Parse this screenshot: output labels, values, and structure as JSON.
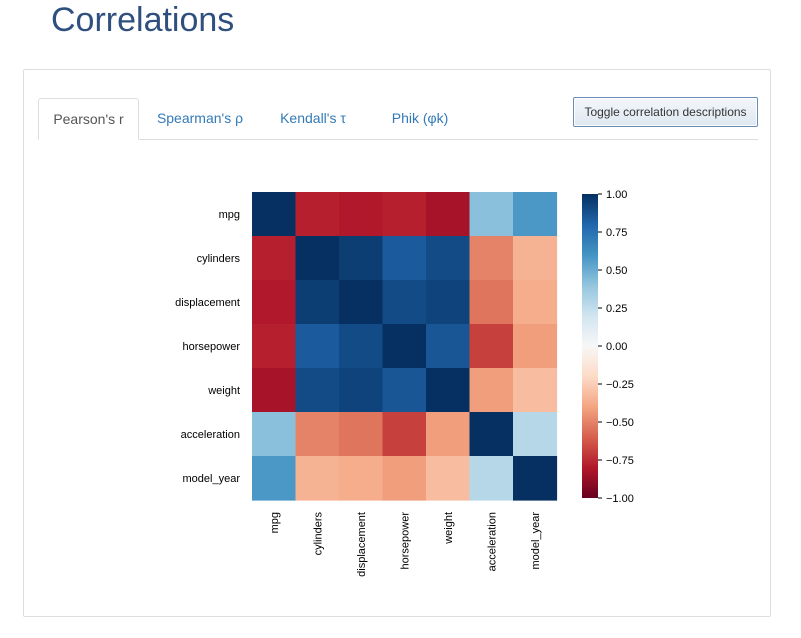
{
  "page": {
    "title": "Correlations"
  },
  "tabs": [
    {
      "label": "Pearson's r",
      "active": true
    },
    {
      "label": "Spearman's ρ",
      "active": false
    },
    {
      "label": "Kendall's τ",
      "active": false
    },
    {
      "label": "Phik (φk)",
      "active": false
    }
  ],
  "toggle_button": {
    "label": "Toggle correlation descriptions"
  },
  "chart_data": {
    "type": "heatmap",
    "title": "",
    "variables": [
      "mpg",
      "cylinders",
      "displacement",
      "horsepower",
      "weight",
      "acceleration",
      "model_year"
    ],
    "matrix": [
      [
        1.0,
        -0.78,
        -0.8,
        -0.78,
        -0.83,
        0.42,
        0.58
      ],
      [
        -0.78,
        1.0,
        0.95,
        0.84,
        0.9,
        -0.5,
        -0.35
      ],
      [
        -0.8,
        0.95,
        1.0,
        0.9,
        0.93,
        -0.54,
        -0.37
      ],
      [
        -0.78,
        0.84,
        0.9,
        1.0,
        0.86,
        -0.69,
        -0.42
      ],
      [
        -0.83,
        0.9,
        0.93,
        0.86,
        1.0,
        -0.42,
        -0.31
      ],
      [
        0.42,
        -0.5,
        -0.54,
        -0.69,
        -0.42,
        1.0,
        0.29
      ],
      [
        0.58,
        -0.35,
        -0.37,
        -0.42,
        -0.31,
        0.29,
        1.0
      ]
    ],
    "colorbar": {
      "range": [
        -1.0,
        1.0
      ],
      "ticks": [
        "1.00",
        "0.75",
        "0.50",
        "0.25",
        "0.00",
        "−0.25",
        "−0.50",
        "−0.75",
        "−1.00"
      ],
      "colormap": "RdBu"
    }
  }
}
